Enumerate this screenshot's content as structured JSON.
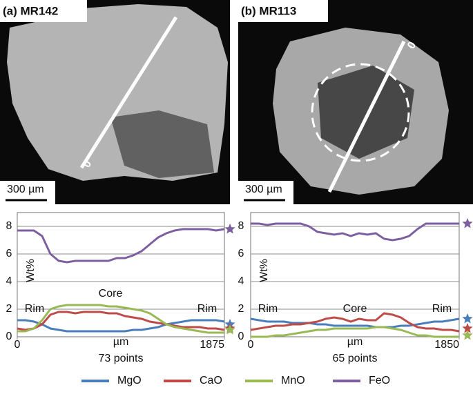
{
  "images": [
    {
      "label": "(a) MR142",
      "scale_bar": "300 µm",
      "marker": "0"
    },
    {
      "label": "(b) MR113",
      "scale_bar": "300 µm",
      "marker": "0"
    }
  ],
  "chart_data": [
    {
      "type": "line",
      "ylabel": "Wt%",
      "xlabel": "µm",
      "note": "73 points",
      "annotations": [
        "Rim",
        "Core",
        "Rim"
      ],
      "x": [
        0,
        75,
        150,
        225,
        300,
        375,
        450,
        525,
        600,
        675,
        750,
        825,
        900,
        975,
        1050,
        1125,
        1200,
        1275,
        1350,
        1425,
        1500,
        1575,
        1650,
        1725,
        1800,
        1875
      ],
      "xlim": [
        0,
        1875
      ],
      "xticks": [
        0,
        1875
      ],
      "ylim": [
        0,
        9
      ],
      "yticks": [
        0,
        2,
        4,
        6,
        8
      ],
      "grid": true,
      "series": [
        {
          "name": "MgO",
          "color": "#4a7ebb",
          "star": 0.9,
          "values": [
            1.2,
            1.2,
            1.1,
            0.9,
            0.6,
            0.5,
            0.4,
            0.4,
            0.4,
            0.4,
            0.4,
            0.4,
            0.4,
            0.4,
            0.5,
            0.5,
            0.6,
            0.7,
            0.9,
            1.0,
            1.1,
            1.2,
            1.2,
            1.2,
            1.2,
            1.1
          ]
        },
        {
          "name": "CaO",
          "color": "#be4b48",
          "star": 0.6,
          "values": [
            0.6,
            0.5,
            0.6,
            0.9,
            1.6,
            1.8,
            1.8,
            1.7,
            1.8,
            1.8,
            1.8,
            1.7,
            1.7,
            1.5,
            1.4,
            1.3,
            1.1,
            1.0,
            0.9,
            0.8,
            0.7,
            0.7,
            0.7,
            0.6,
            0.6,
            0.5
          ]
        },
        {
          "name": "MnO",
          "color": "#98b954",
          "star": 0.5,
          "values": [
            0.4,
            0.4,
            0.6,
            1.2,
            2.0,
            2.2,
            2.3,
            2.3,
            2.3,
            2.3,
            2.3,
            2.2,
            2.2,
            2.1,
            2.0,
            1.9,
            1.7,
            1.3,
            0.9,
            0.7,
            0.6,
            0.5,
            0.4,
            0.3,
            0.3,
            0.3
          ]
        },
        {
          "name": "FeO",
          "color": "#7d5fa0",
          "star": 7.8,
          "values": [
            7.7,
            7.7,
            7.7,
            7.3,
            6.0,
            5.5,
            5.4,
            5.5,
            5.5,
            5.5,
            5.5,
            5.5,
            5.7,
            5.7,
            5.9,
            6.2,
            6.7,
            7.2,
            7.5,
            7.7,
            7.8,
            7.8,
            7.8,
            7.8,
            7.7,
            7.8
          ]
        }
      ]
    },
    {
      "type": "line",
      "ylabel": "Wt%",
      "xlabel": "µm",
      "note": "65 points",
      "annotations": [
        "Rim",
        "Core",
        "Rim"
      ],
      "x": [
        0,
        74,
        148,
        222,
        296,
        370,
        444,
        518,
        592,
        666,
        740,
        814,
        888,
        962,
        1036,
        1110,
        1184,
        1258,
        1332,
        1406,
        1480,
        1554,
        1628,
        1702,
        1776,
        1850
      ],
      "xlim": [
        0,
        1850
      ],
      "xticks": [
        0,
        1850
      ],
      "ylim": [
        0,
        9
      ],
      "yticks": [
        0,
        2,
        4,
        6,
        8
      ],
      "grid": true,
      "series": [
        {
          "name": "MgO",
          "color": "#4a7ebb",
          "star": 1.3,
          "values": [
            1.3,
            1.2,
            1.1,
            1.1,
            1.1,
            1.0,
            1.0,
            1.0,
            0.9,
            0.9,
            0.8,
            0.8,
            0.8,
            0.8,
            0.8,
            0.7,
            0.7,
            0.7,
            0.8,
            0.8,
            0.9,
            1.0,
            1.1,
            1.1,
            1.2,
            1.3
          ]
        },
        {
          "name": "CaO",
          "color": "#be4b48",
          "star": 0.6,
          "values": [
            0.5,
            0.6,
            0.7,
            0.8,
            0.8,
            0.9,
            0.9,
            1.0,
            1.1,
            1.3,
            1.4,
            1.3,
            1.1,
            1.3,
            1.2,
            1.2,
            1.7,
            1.6,
            1.4,
            1.0,
            0.7,
            0.6,
            0.6,
            0.5,
            0.5,
            0.4
          ]
        },
        {
          "name": "MnO",
          "color": "#98b954",
          "star": 0.1,
          "values": [
            0.0,
            0.0,
            0.0,
            0.1,
            0.1,
            0.2,
            0.3,
            0.4,
            0.5,
            0.5,
            0.6,
            0.6,
            0.6,
            0.6,
            0.6,
            0.7,
            0.7,
            0.6,
            0.5,
            0.3,
            0.1,
            0.1,
            0.0,
            0.0,
            0.0,
            0.0
          ]
        },
        {
          "name": "FeO",
          "color": "#7d5fa0",
          "star": 8.2,
          "values": [
            8.2,
            8.2,
            8.1,
            8.2,
            8.2,
            8.2,
            8.2,
            8.0,
            7.6,
            7.5,
            7.4,
            7.5,
            7.3,
            7.5,
            7.4,
            7.5,
            7.1,
            7.0,
            7.1,
            7.3,
            7.8,
            8.2,
            8.2,
            8.2,
            8.2,
            8.2
          ]
        }
      ]
    }
  ]
}
